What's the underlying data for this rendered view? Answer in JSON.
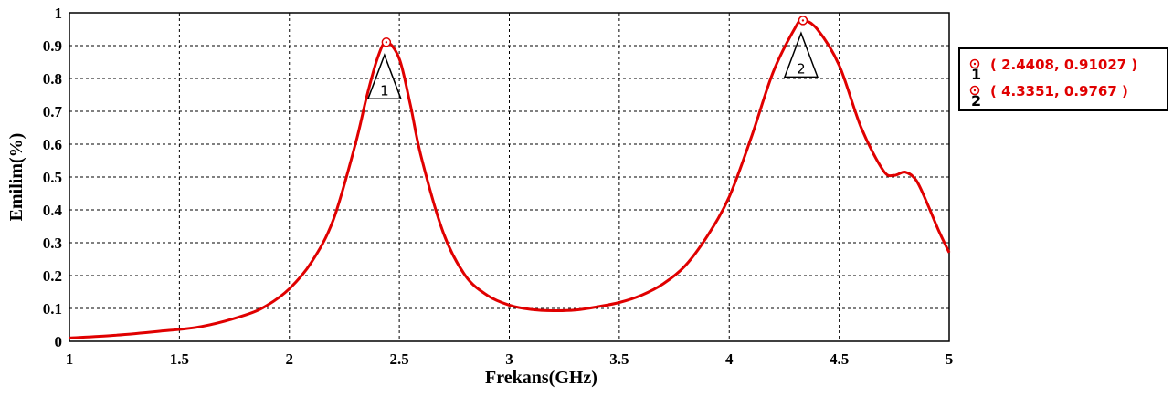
{
  "chart_data": {
    "type": "line",
    "xlabel": "Frekans(GHz)",
    "ylabel": "Emilim(%)",
    "xlim": [
      1,
      5
    ],
    "ylim": [
      0,
      1
    ],
    "xticks": [
      "1",
      "1.5",
      "2",
      "2.5",
      "3",
      "3.5",
      "4",
      "4.5",
      "5"
    ],
    "yticks": [
      "0",
      "0.1",
      "0.2",
      "0.3",
      "0.4",
      "0.5",
      "0.6",
      "0.7",
      "0.8",
      "0.9",
      "1"
    ],
    "grid": true,
    "line_color": "#e00000",
    "series": [
      {
        "x": [
          1.0,
          1.2,
          1.4,
          1.6,
          1.8,
          1.9,
          2.0,
          2.1,
          2.2,
          2.3,
          2.35,
          2.4,
          2.4408,
          2.5,
          2.55,
          2.6,
          2.7,
          2.8,
          2.9,
          3.0,
          3.1,
          3.2,
          3.3,
          3.4,
          3.5,
          3.6,
          3.7,
          3.8,
          3.9,
          4.0,
          4.1,
          4.2,
          4.3,
          4.3351,
          4.4,
          4.5,
          4.6,
          4.7,
          4.75,
          4.8,
          4.85,
          4.9,
          4.95,
          5.0
        ],
        "y": [
          0.01,
          0.018,
          0.03,
          0.045,
          0.08,
          0.11,
          0.16,
          0.24,
          0.37,
          0.6,
          0.74,
          0.86,
          0.91027,
          0.86,
          0.72,
          0.56,
          0.33,
          0.2,
          0.14,
          0.11,
          0.097,
          0.093,
          0.095,
          0.105,
          0.118,
          0.14,
          0.175,
          0.23,
          0.32,
          0.44,
          0.62,
          0.82,
          0.955,
          0.9767,
          0.95,
          0.84,
          0.65,
          0.52,
          0.505,
          0.515,
          0.49,
          0.42,
          0.34,
          0.27
        ]
      }
    ],
    "markers": [
      {
        "id": "1",
        "x": 2.4408,
        "y": 0.91027,
        "label": "( 2.4408, 0.91027 )"
      },
      {
        "id": "2",
        "x": 4.3351,
        "y": 0.9767,
        "label": "( 4.3351, 0.9767 )"
      }
    ],
    "legend_position": "right"
  }
}
